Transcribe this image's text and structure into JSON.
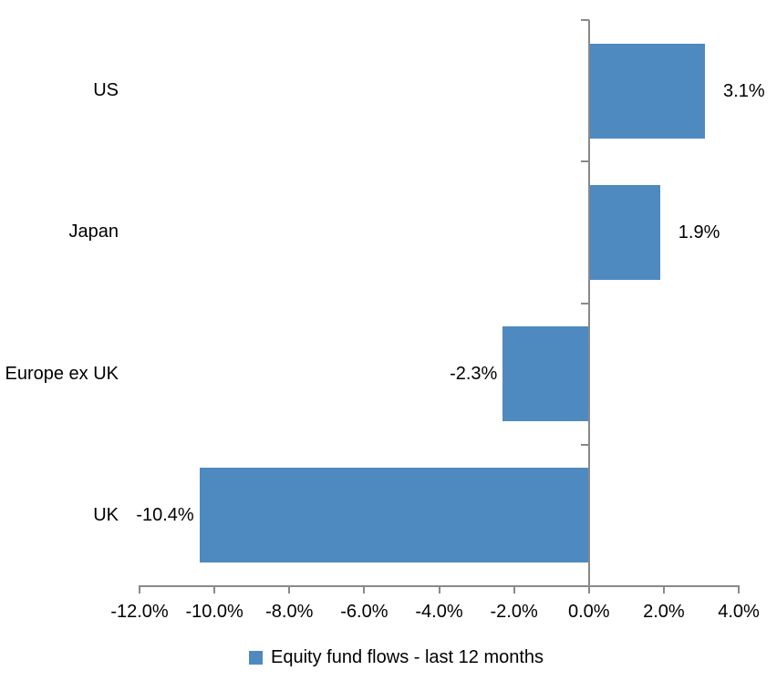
{
  "chart_data": {
    "type": "bar",
    "orientation": "horizontal",
    "title": "",
    "categories": [
      "US",
      "Japan",
      "Europe ex UK",
      "UK"
    ],
    "values": [
      3.1,
      1.9,
      -2.3,
      -10.4
    ],
    "data_labels": [
      "3.1%",
      "1.9%",
      "-2.3%",
      "-10.4%"
    ],
    "series_name": "Equity fund flows - last 12 months",
    "xlim": [
      -12,
      4
    ],
    "x_tick_step": 2,
    "x_tick_labels": [
      "-12.0%",
      "-10.0%",
      "-8.0%",
      "-6.0%",
      "-4.0%",
      "-2.0%",
      "0.0%",
      "2.0%",
      "4.0%"
    ],
    "grid": false,
    "legend_position": "bottom",
    "colors": {
      "bar": "#4E89BF",
      "axis": "#898989",
      "text": "#000000",
      "background": "#FFFFFF"
    }
  }
}
